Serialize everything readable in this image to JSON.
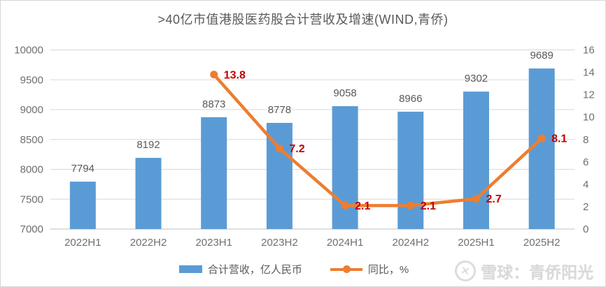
{
  "chart_data": {
    "type": "bar",
    "combo": "bar+line",
    "title": ">40亿市值港股医药股合计营收及增速(WIND,青侨)",
    "categories": [
      "2022H1",
      "2022H2",
      "2023H1",
      "2023H2",
      "2024H1",
      "2024H2",
      "2025H1",
      "2025H2"
    ],
    "series": [
      {
        "name": "合计营收，亿人民币",
        "type": "bar",
        "axis": "left",
        "color": "#5B9BD5",
        "label_color": "#595959",
        "values": [
          7794,
          8192,
          8873,
          8778,
          9058,
          8966,
          9302,
          9689
        ]
      },
      {
        "name": "同比，%",
        "type": "line",
        "axis": "right",
        "color": "#ED7D31",
        "label_color": "#C00000",
        "values": [
          null,
          null,
          13.8,
          7.2,
          2.1,
          2.1,
          2.7,
          8.1
        ]
      }
    ],
    "left_axis": {
      "min": 7000,
      "max": 10000,
      "step": 500,
      "ticks": [
        7000,
        7500,
        8000,
        8500,
        9000,
        9500,
        10000
      ]
    },
    "right_axis": {
      "min": 0,
      "max": 16,
      "step": 2,
      "ticks": [
        0,
        2,
        4,
        6,
        8,
        10,
        12,
        14,
        16
      ]
    },
    "grid": true,
    "legend_position": "bottom",
    "grid_color": "#d9d9d9",
    "axis_line_color": "#bfbfbf",
    "tick_label_color": "#6f6f6f"
  },
  "watermark": {
    "logo": "xueqiu-circle-x",
    "logo_glyph": "✕",
    "text": "雪球：青侨阳光"
  }
}
